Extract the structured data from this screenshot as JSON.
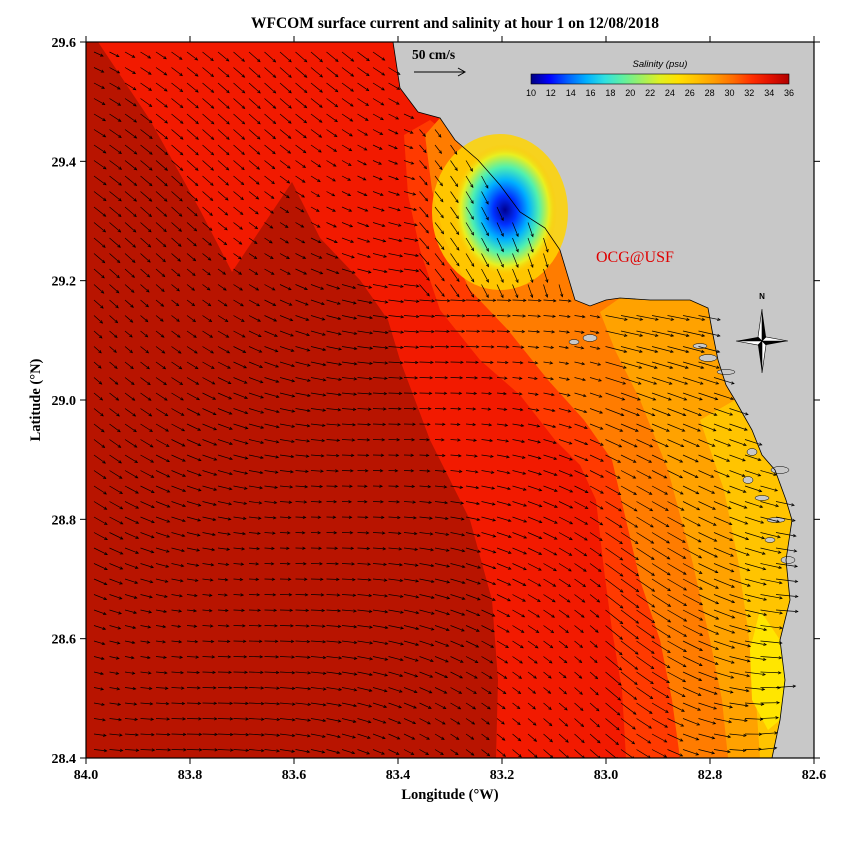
{
  "title": "WFCOM surface current and salinity at hour 1 on 12/08/2018",
  "x_axis": {
    "label": "Longitude (°W)",
    "range": [
      84.0,
      82.6
    ],
    "ticks": [
      "84.0",
      "83.8",
      "83.6",
      "83.4",
      "83.2",
      "83.0",
      "82.8",
      "82.6"
    ]
  },
  "y_axis": {
    "label": "Latitude (°N)",
    "range": [
      28.4,
      29.6
    ],
    "ticks": [
      "28.4",
      "28.6",
      "28.8",
      "29.0",
      "29.2",
      "29.4",
      "29.6"
    ]
  },
  "reference_vector": {
    "label": "50 cm/s",
    "speed_cm_s": 50
  },
  "colorbar": {
    "title": "Salinity (psu)",
    "range": [
      10,
      36
    ],
    "ticks": [
      "10",
      "12",
      "14",
      "16",
      "18",
      "20",
      "22",
      "24",
      "26",
      "28",
      "30",
      "32",
      "34",
      "36"
    ],
    "palette": [
      "#000080",
      "#0000ff",
      "#0060ff",
      "#00b0ff",
      "#30e0e0",
      "#60f0a0",
      "#a0f060",
      "#e0f020",
      "#ffe000",
      "#ffc000",
      "#ff9a00",
      "#ff6a00",
      "#ff2e00",
      "#e01000",
      "#b00000"
    ]
  },
  "credit": "OCG@USF",
  "north_arrow": {
    "label": "N"
  },
  "colors": {
    "land": "#c8c8c8",
    "plot_frame": "#000000",
    "credit_text": "#e00000",
    "zone_deep_red": "#b81400",
    "zone_red": "#f21a00",
    "zone_red_orange": "#ff3a00",
    "zone_orange": "#ff7c00",
    "zone_light_orange": "#ffa200",
    "zone_yellow_orange": "#ffc400",
    "zone_yellow": "#ffe600"
  }
}
